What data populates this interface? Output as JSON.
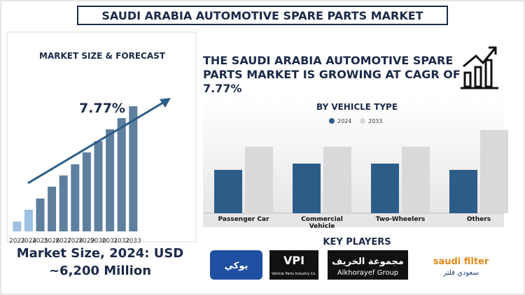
{
  "header": {
    "title": "SAUDI ARABIA AUTOMOTIVE SPARE PARTS MARKET"
  },
  "headline": "THE SAUDI ARABIA AUTOMOTIVE SPARE PARTS MARKET IS GROWING AT CAGR OF 7.77%",
  "market_size": "Market Size, 2024: USD ~6,200 Million",
  "chart_data": [
    {
      "type": "bar",
      "title": "MARKET SIZE & FORECAST",
      "annotation": "7.77%",
      "categories": [
        "2023",
        "2024",
        "2025",
        "2026",
        "2027",
        "2028",
        "2029",
        "2030",
        "2031",
        "2032",
        "2033"
      ],
      "values": [
        14,
        31,
        47,
        64,
        80,
        96,
        113,
        129,
        146,
        162,
        179
      ],
      "colors": [
        "#9dc0e3",
        "#9dc0e3",
        "#5f7f9e",
        "#5f7f9e",
        "#5f7f9e",
        "#5f7f9e",
        "#5f7f9e",
        "#5f7f9e",
        "#5f7f9e",
        "#5f7f9e",
        "#5f7f9e"
      ]
    },
    {
      "type": "grouped_bar",
      "title": "BY VEHICLE TYPE",
      "categories": [
        "Passenger Car",
        "Commercial Vehicle",
        "Two-Wheelers",
        "Others"
      ],
      "series": [
        {
          "name": "2024",
          "color": "#2c5d88",
          "values": [
            62,
            71,
            71,
            62
          ]
        },
        {
          "name": "2033",
          "color": "#d9d9d9",
          "values": [
            95,
            95,
            95,
            119
          ]
        }
      ]
    }
  ],
  "key_players": {
    "title": "KEY PLAYERS",
    "logos": [
      {
        "text": "يوكي"
      },
      {
        "text": "VPI",
        "subtitle": "Vehicle Parts Industry Co."
      },
      {
        "text": "مجموعة الخريف",
        "subtitle": "Alkhorayef Group"
      },
      {
        "text": "saudi filter",
        "subtitle": "سعودي فلتر"
      }
    ]
  }
}
